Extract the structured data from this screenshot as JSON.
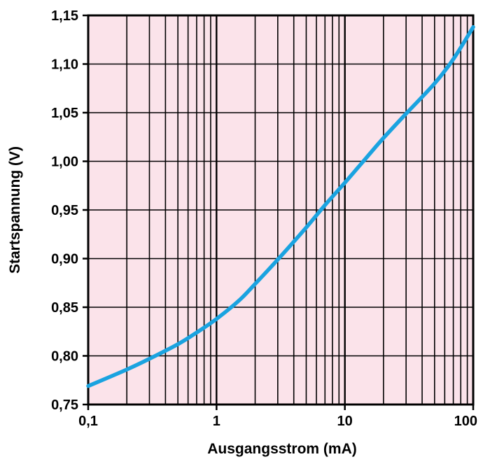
{
  "chart_data": {
    "type": "line",
    "title": "",
    "xlabel": "Ausgangsstrom (mA)",
    "ylabel": "Startspannung (V)",
    "x_scale": "log",
    "xlim": [
      0.1,
      100
    ],
    "ylim": [
      0.75,
      1.15
    ],
    "grid": true,
    "x_ticks": [
      {
        "value": 0.1,
        "label": "0,1"
      },
      {
        "value": 1,
        "label": "1"
      },
      {
        "value": 10,
        "label": "10"
      },
      {
        "value": 100,
        "label": "100"
      }
    ],
    "y_ticks": [
      {
        "value": 0.75,
        "label": "0,75"
      },
      {
        "value": 0.8,
        "label": "0,80"
      },
      {
        "value": 0.85,
        "label": "0,85"
      },
      {
        "value": 0.9,
        "label": "0,90"
      },
      {
        "value": 0.95,
        "label": "0,95"
      },
      {
        "value": 1.0,
        "label": "1,00"
      },
      {
        "value": 1.05,
        "label": "1,05"
      },
      {
        "value": 1.1,
        "label": "1,10"
      },
      {
        "value": 1.15,
        "label": "1,15"
      }
    ],
    "series": [
      {
        "x": [
          0.1,
          0.2,
          0.3,
          0.5,
          0.7,
          1,
          1.5,
          2,
          3,
          5,
          7,
          10,
          15,
          20,
          30,
          50,
          70,
          100
        ],
        "y": [
          0.769,
          0.786,
          0.797,
          0.812,
          0.824,
          0.838,
          0.857,
          0.874,
          0.899,
          0.932,
          0.955,
          0.978,
          1.005,
          1.024,
          1.049,
          1.08,
          1.105,
          1.138
        ]
      }
    ],
    "colors": {
      "plot_background": "#fbe3ea",
      "grid": "#000000",
      "line": "#1aa3e0"
    }
  }
}
